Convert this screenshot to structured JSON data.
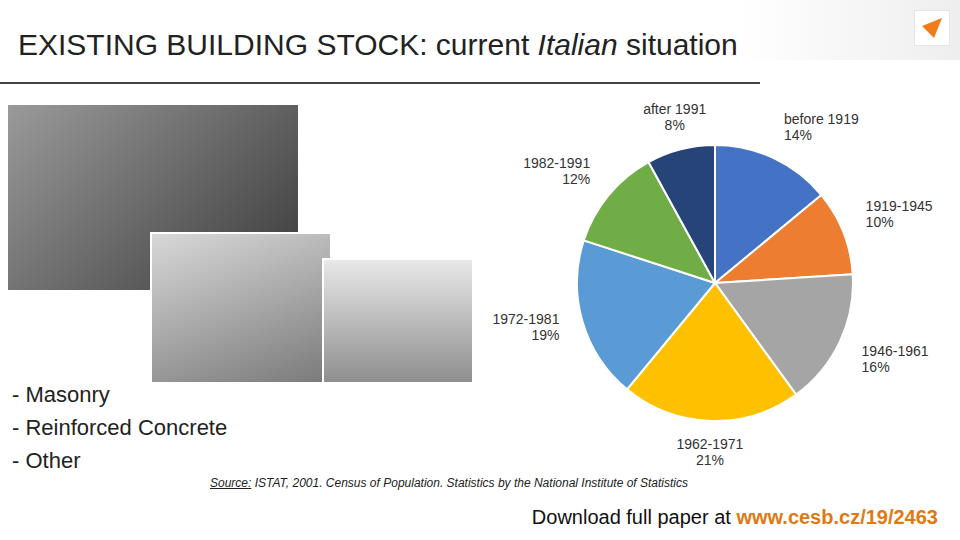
{
  "title": "EXISTING BUILDING STOCK: current Italian situation",
  "title_italic": "Italian",
  "bullets": [
    "- Masonry",
    "- Reinforced Concrete",
    "- Other"
  ],
  "source_label": "Source:",
  "source_text": " ISTAT, 2001. Census of Population. Statistics by the National Institute of Statistics",
  "download_text": "Download full paper at ",
  "download_url": "www.cesb.cz/19/2463",
  "chart_data": {
    "type": "pie",
    "categories": [
      "before 1919",
      "1919-1945",
      "1946-1961",
      "1962-1971",
      "1972-1981",
      "1982-1991",
      "after 1991"
    ],
    "values": [
      14,
      10,
      16,
      21,
      19,
      12,
      8
    ],
    "value_labels": [
      "14%",
      "10%",
      "16%",
      "21%",
      "19%",
      "12%",
      "8%"
    ],
    "colors": [
      "#4472c4",
      "#ed7d31",
      "#a5a5a5",
      "#ffc000",
      "#5b9bd5",
      "#70ad47",
      "#264478"
    ],
    "data_labels": true
  }
}
